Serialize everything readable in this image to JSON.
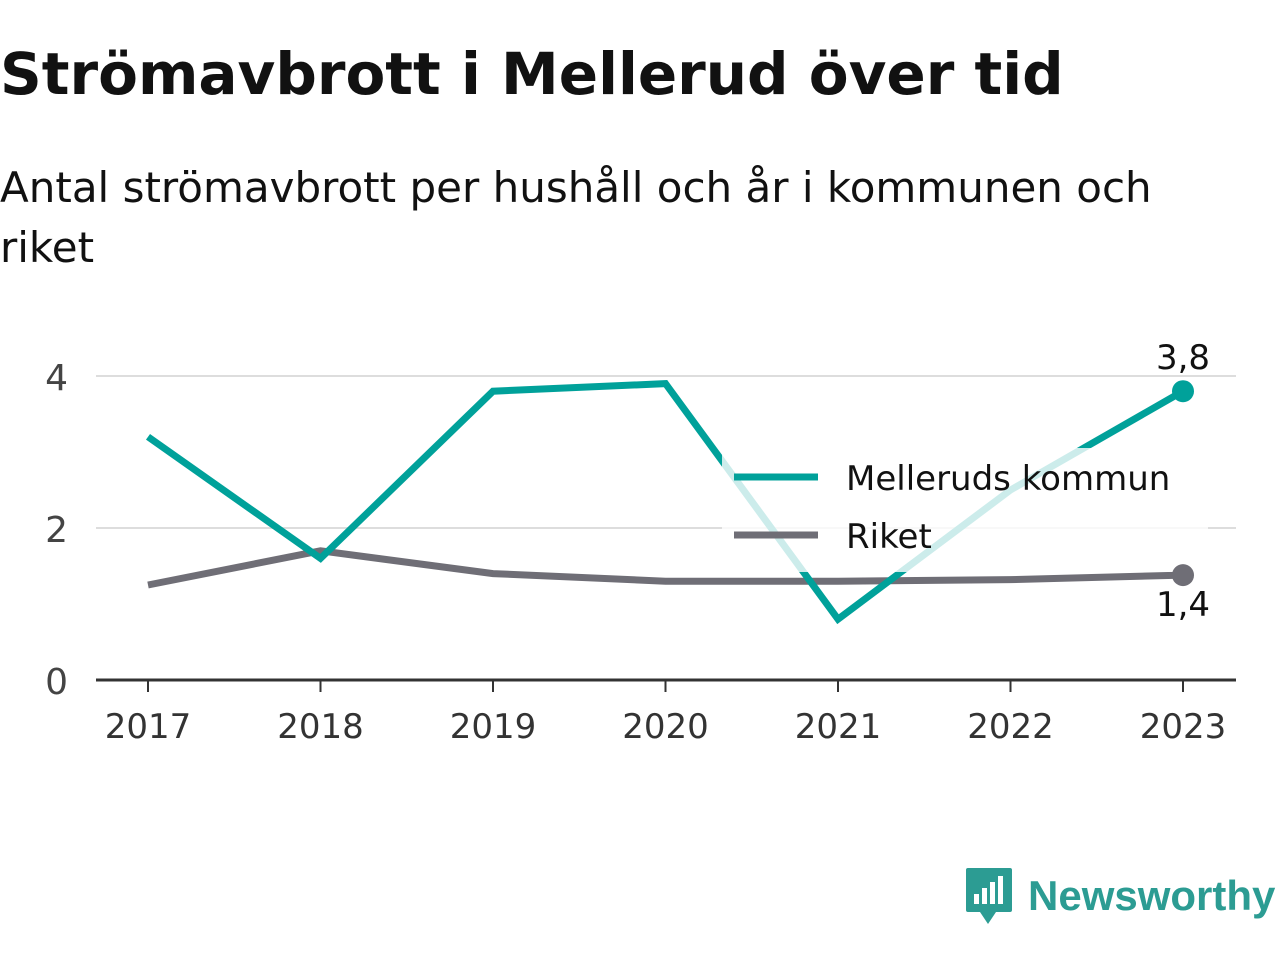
{
  "title": "Strömavbrott i Mellerud över tid",
  "subtitle": "Antal strömavbrott per hushåll och år i kommunen och riket",
  "brand": {
    "name": "Newsworthy",
    "color": "#2c9c93"
  },
  "chart_data": {
    "type": "line",
    "x": [
      "2017",
      "2018",
      "2019",
      "2020",
      "2021",
      "2022",
      "2023"
    ],
    "series": [
      {
        "name": "Melleruds kommun",
        "color": "#00a19a",
        "values": [
          3.2,
          1.6,
          3.8,
          3.9,
          0.8,
          2.5,
          3.8
        ],
        "end_label": "3,8"
      },
      {
        "name": "Riket",
        "color": "#6f6e76",
        "values": [
          1.25,
          1.7,
          1.4,
          1.3,
          1.3,
          1.32,
          1.38
        ],
        "end_label": "1,4"
      }
    ],
    "yticks": [
      {
        "value": 0,
        "label": "0"
      },
      {
        "value": 2,
        "label": "2"
      },
      {
        "value": 4,
        "label": "4"
      }
    ],
    "ylim": [
      0,
      4
    ],
    "grid": true,
    "legend": "right"
  }
}
